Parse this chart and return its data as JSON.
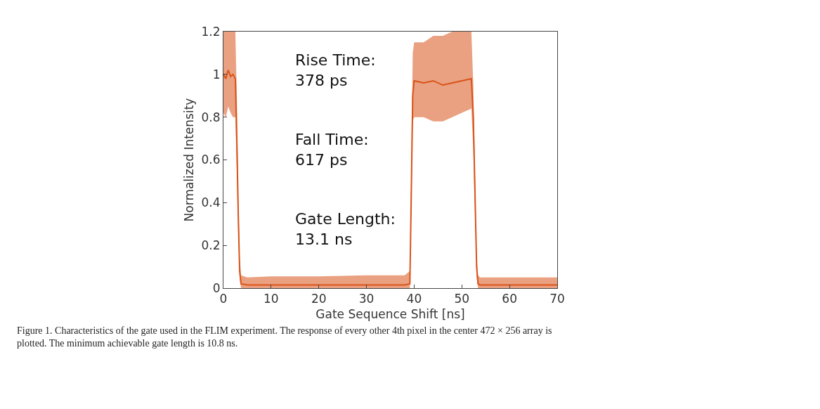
{
  "chart_data": {
    "type": "line",
    "xlabel": "Gate Sequence Shift [ns]",
    "ylabel": "Normalized Intensity",
    "x": [
      0,
      0.5,
      1,
      1.5,
      2,
      2.5,
      2.8,
      3.1,
      3.4,
      3.7,
      5,
      10,
      20,
      30,
      38,
      39.1,
      39.4,
      39.7,
      40,
      42,
      44,
      46,
      48,
      50,
      52,
      52.4,
      52.8,
      53.1,
      53.4,
      53.8,
      55,
      60,
      65,
      70
    ],
    "series": [
      {
        "color": "#d95319",
        "values": [
          1.0,
          0.98,
          1.02,
          0.99,
          1.0,
          0.98,
          0.7,
          0.35,
          0.08,
          0.02,
          0.015,
          0.015,
          0.015,
          0.015,
          0.015,
          0.02,
          0.45,
          0.9,
          0.97,
          0.96,
          0.97,
          0.95,
          0.96,
          0.97,
          0.98,
          0.8,
          0.4,
          0.1,
          0.02,
          0.015,
          0.015,
          0.015,
          0.015,
          0.015
        ],
        "lower": [
          0.82,
          0.8,
          0.85,
          0.82,
          0.8,
          0.8,
          0.55,
          0.25,
          0.04,
          0.0,
          0.0,
          0.0,
          0.0,
          0.0,
          0.0,
          0.0,
          0.35,
          0.78,
          0.8,
          0.8,
          0.78,
          0.78,
          0.8,
          0.82,
          0.84,
          0.65,
          0.3,
          0.05,
          0.0,
          0.0,
          0.0,
          0.0,
          0.0,
          0.0
        ],
        "upper": [
          1.2,
          1.2,
          1.2,
          1.2,
          1.2,
          1.2,
          0.9,
          0.45,
          0.15,
          0.06,
          0.05,
          0.055,
          0.055,
          0.06,
          0.06,
          0.08,
          0.6,
          1.1,
          1.15,
          1.15,
          1.18,
          1.18,
          1.2,
          1.2,
          1.2,
          0.95,
          0.5,
          0.15,
          0.06,
          0.05,
          0.05,
          0.05,
          0.05,
          0.05
        ]
      }
    ],
    "xlim": [
      0,
      70
    ],
    "xticks": [
      0,
      10,
      20,
      30,
      40,
      50,
      60,
      70
    ],
    "ylim": [
      0,
      1.2
    ],
    "yticks": [
      0,
      0.2,
      0.4,
      0.6,
      0.8,
      1,
      1.2
    ],
    "annotations": [
      "Rise Time:\n378 ps",
      "Fall Time:\n617 ps",
      "Gate Length:\n13.1 ns",
      "Figure 1. Characteristics of the gate used in the FLIM experiment. The response of every other 4th pixel in the center 472 × 256 array is plotted. The minimum achievable gate length is 10.8 ns."
    ]
  }
}
